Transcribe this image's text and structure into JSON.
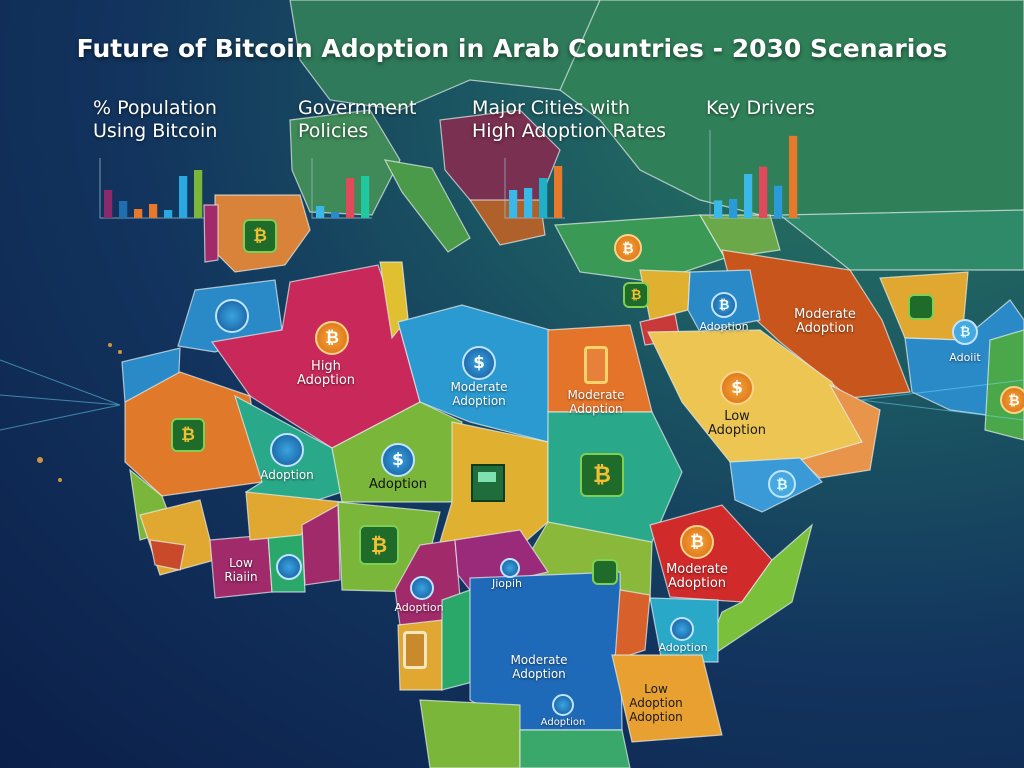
{
  "title": "Future of Bitcoin Adoption in Arab Countries - 2030 Scenarios",
  "panels": [
    {
      "heading": "% Population Using Bitcoin",
      "bars": [
        {
          "v": 28,
          "c": "#8a2a6a"
        },
        {
          "v": 17,
          "c": "#1f6fb0"
        },
        {
          "v": 9,
          "c": "#e67a2a"
        },
        {
          "v": 14,
          "c": "#e67a2a"
        },
        {
          "v": 8,
          "c": "#2aa8e0"
        },
        {
          "v": 42,
          "c": "#2aa8e0"
        },
        {
          "v": 48,
          "c": "#7ab63a"
        }
      ]
    },
    {
      "heading": "Government Policies",
      "bars": [
        {
          "v": 12,
          "c": "#3ab8e8"
        },
        {
          "v": 6,
          "c": "#2a8ad0"
        },
        {
          "v": 40,
          "c": "#e04a5a"
        },
        {
          "v": 42,
          "c": "#1fc8a0"
        }
      ]
    },
    {
      "heading": "Major Cities with High Adoption Rates",
      "bars": [
        {
          "v": 28,
          "c": "#3ab8e8"
        },
        {
          "v": 30,
          "c": "#3ab8e8"
        },
        {
          "v": 40,
          "c": "#1fb0c8"
        },
        {
          "v": 52,
          "c": "#e67a2a"
        }
      ]
    },
    {
      "heading": "Key Drivers",
      "bars": [
        {
          "v": 12,
          "c": "#3ab8e8"
        },
        {
          "v": 13,
          "c": "#2a9ad8"
        },
        {
          "v": 30,
          "c": "#3ab8e8"
        },
        {
          "v": 35,
          "c": "#e04a5a"
        },
        {
          "v": 22,
          "c": "#2a9ad8"
        },
        {
          "v": 56,
          "c": "#e67a2a"
        }
      ]
    }
  ],
  "regions": {
    "algeria": "High Adoption",
    "libya": "Moderate Adoption",
    "egypt": "Moderate Adoption",
    "saudi": "Low Adoption",
    "iran": "Moderate Adoption",
    "mali": "Adoption",
    "niger": "Adoption",
    "ethiopia": "Moderate Adoption",
    "west_africa": "Low Riaiin",
    "cameroon": "Adoption",
    "car": "Jiopih",
    "drc": "Moderate Adoption",
    "drc_small": "Adoption",
    "kenya": "Adoption",
    "tanzania": "Low Adoption Adoption",
    "jordan": "Adoption",
    "pakistan": "Adoiit"
  },
  "icons": {
    "bitcoin": "₿",
    "dollar": "$"
  },
  "colors": {
    "ocean": "#0f2d5a",
    "high": "#c8285a",
    "moderate_blue": "#2a9ad0",
    "low_yellow": "#e8c040",
    "orange": "#e4742a"
  }
}
